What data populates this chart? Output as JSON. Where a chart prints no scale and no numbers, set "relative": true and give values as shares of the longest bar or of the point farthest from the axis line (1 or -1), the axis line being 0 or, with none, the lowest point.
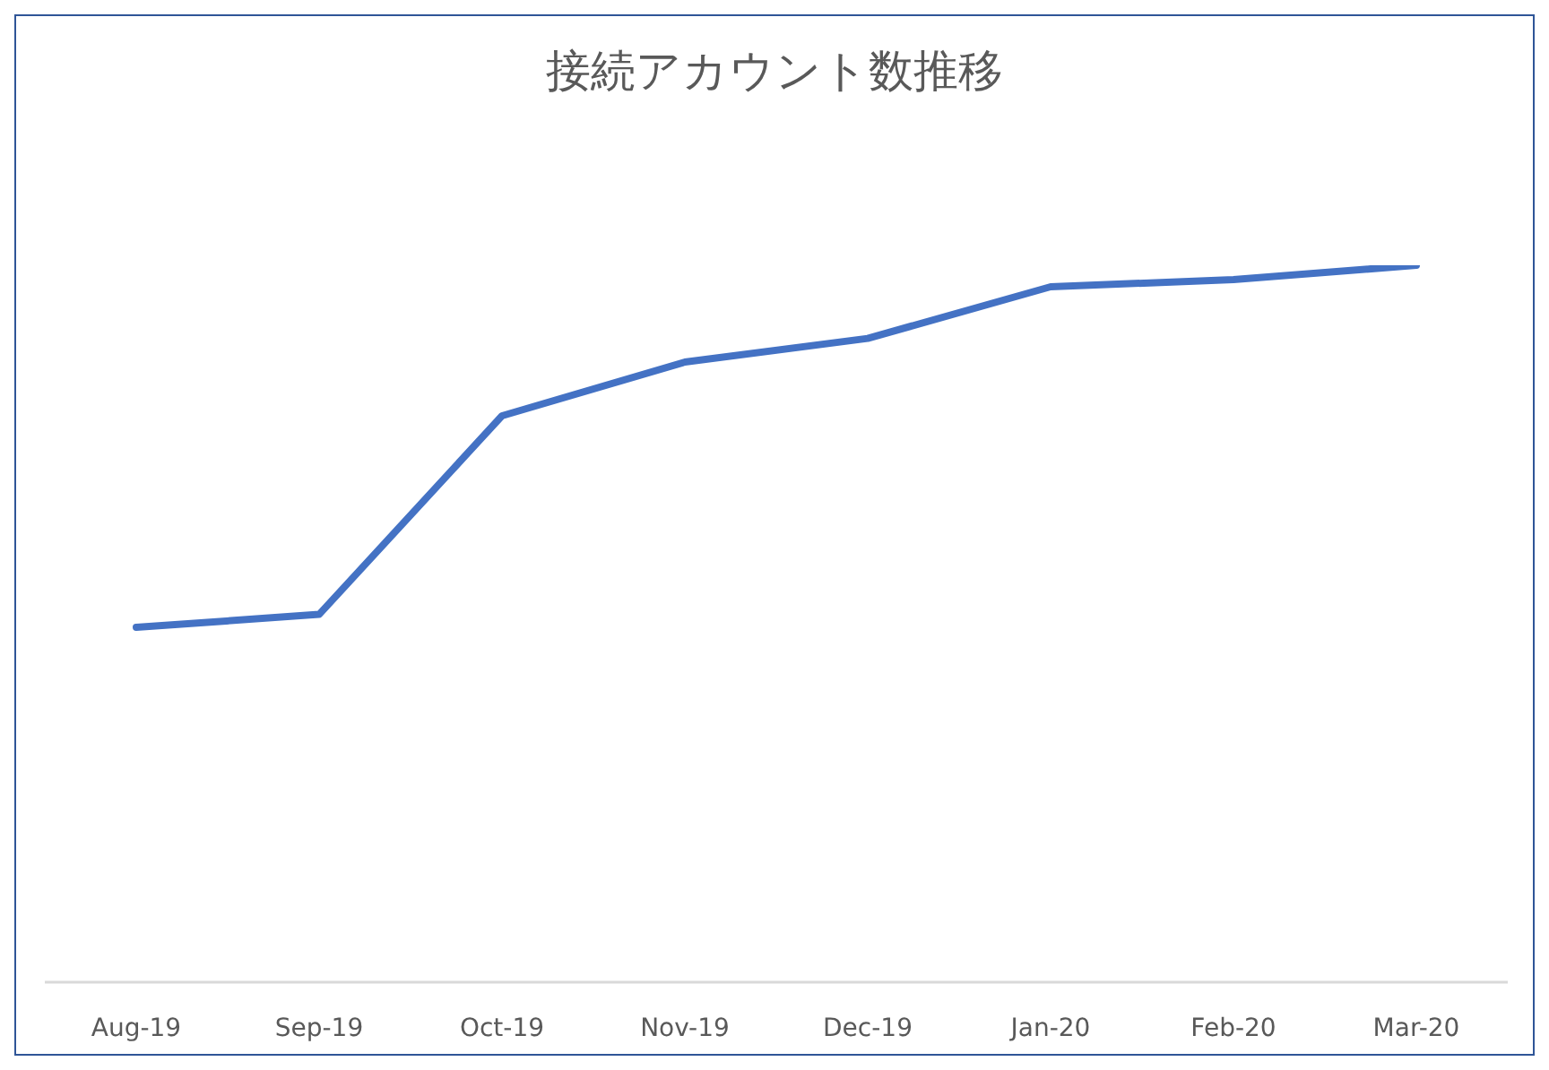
{
  "chart_data": {
    "type": "line",
    "title": "接続アカウント数推移",
    "relative": true,
    "categories": [
      "Aug-19",
      "Sep-19",
      "Oct-19",
      "Nov-19",
      "Dec-19",
      "Jan-20",
      "Feb-20",
      "Mar-20"
    ],
    "series": [
      {
        "color": "#4472c4",
        "values": [
          0.495,
          0.513,
          0.79,
          0.865,
          0.898,
          0.97,
          0.98,
          1
        ]
      }
    ],
    "grid": false,
    "legend": false,
    "marker": "none",
    "line_style": "solid"
  }
}
